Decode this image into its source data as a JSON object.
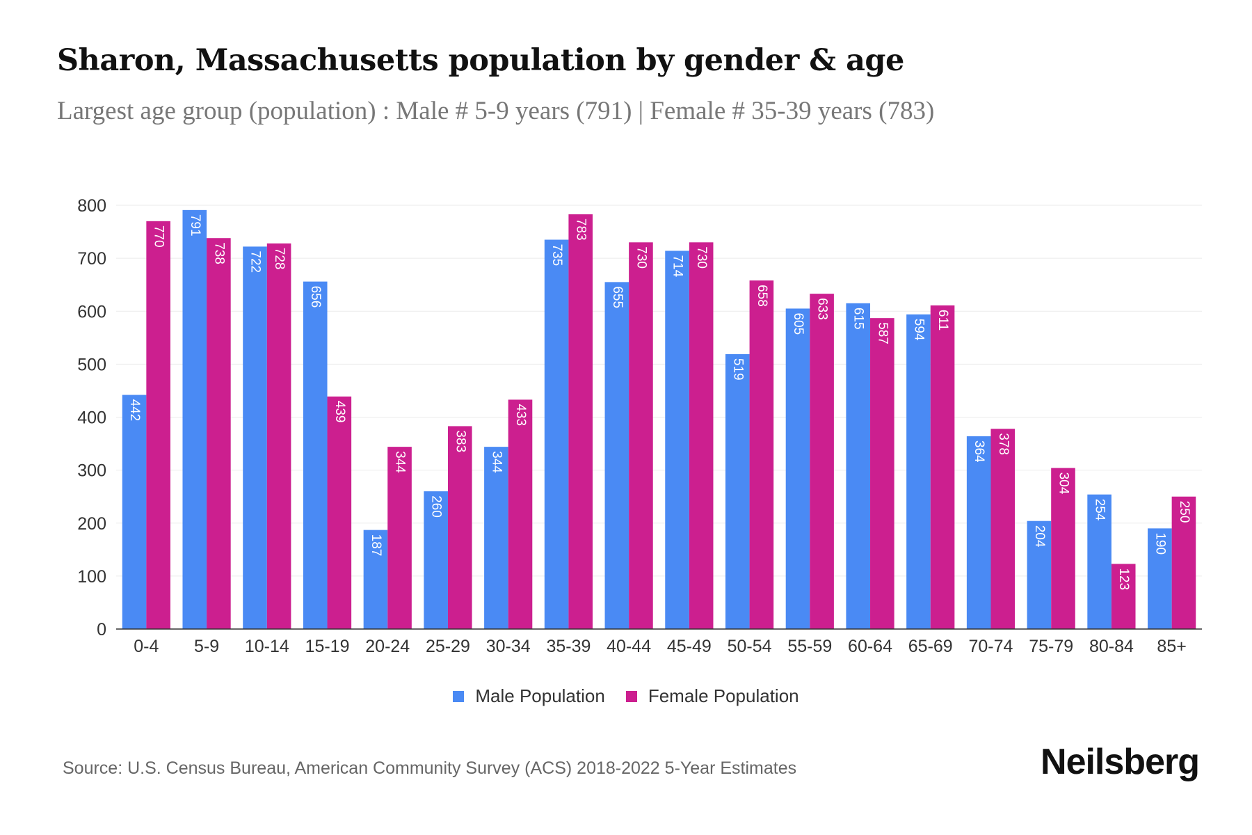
{
  "title": "Sharon, Massachusetts population by gender & age",
  "subtitle": "Largest age group (population) : Male # 5-9 years (791) | Female # 35-39 years (783)",
  "source": "Source: U.S. Census Bureau, American Community Survey (ACS) 2018-2022 5-Year Estimates",
  "brand": "Neilsberg",
  "chart_data": {
    "type": "bar",
    "title": "Sharon, Massachusetts population by gender & age",
    "xlabel": "",
    "ylabel": "",
    "ylim": [
      0,
      800
    ],
    "yticks": [
      0,
      100,
      200,
      300,
      400,
      500,
      600,
      700,
      800
    ],
    "grid": true,
    "legend_position": "bottom-center",
    "categories": [
      "0-4",
      "5-9",
      "10-14",
      "15-19",
      "20-24",
      "25-29",
      "30-34",
      "35-39",
      "40-44",
      "45-49",
      "50-54",
      "55-59",
      "60-64",
      "65-69",
      "70-74",
      "75-79",
      "80-84",
      "85+"
    ],
    "series": [
      {
        "name": "Male Population",
        "color": "#4a8af4",
        "values": [
          442,
          791,
          722,
          656,
          187,
          260,
          344,
          735,
          655,
          714,
          519,
          605,
          615,
          594,
          364,
          204,
          254,
          190
        ]
      },
      {
        "name": "Female Population",
        "color": "#cc1f8f",
        "values": [
          770,
          738,
          728,
          439,
          344,
          383,
          433,
          783,
          730,
          730,
          658,
          633,
          587,
          611,
          378,
          304,
          123,
          250
        ]
      }
    ]
  }
}
